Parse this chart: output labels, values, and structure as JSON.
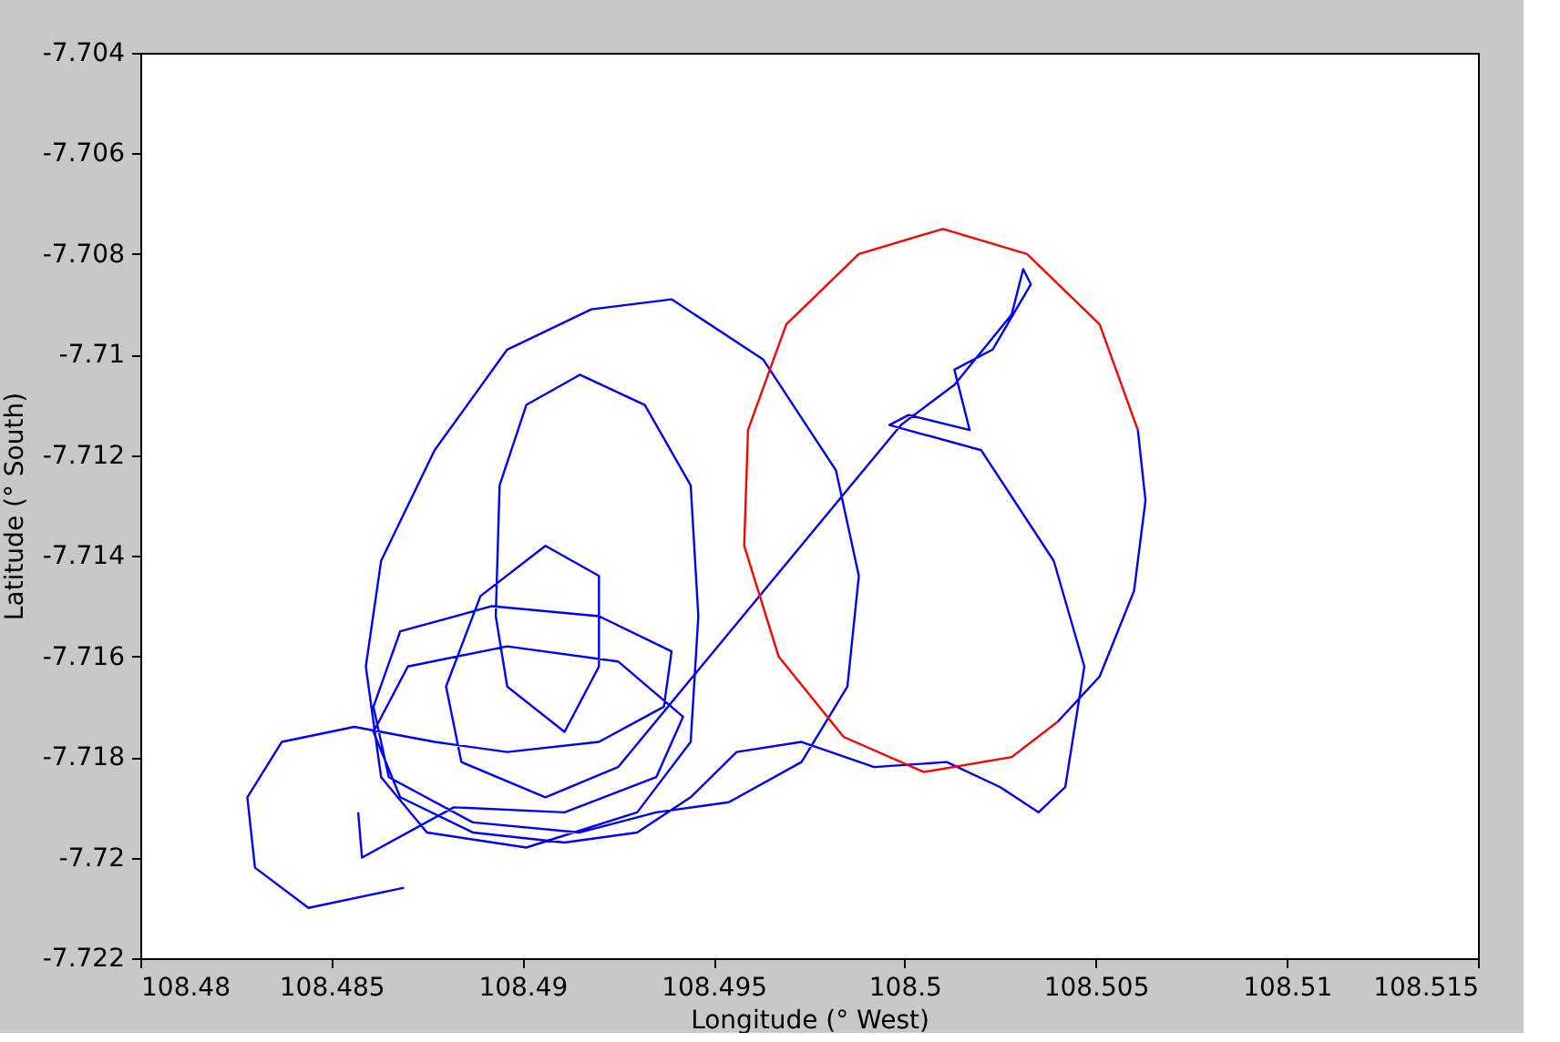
{
  "chart_data": {
    "type": "line",
    "xlabel": "Longitude (° West)",
    "ylabel": "Latitude (° South)",
    "xlim": [
      108.48,
      108.515
    ],
    "xticks": [
      108.48,
      108.485,
      108.49,
      108.495,
      108.5,
      108.505,
      108.51,
      108.515
    ],
    "ylim": [
      -7.722,
      -7.704
    ],
    "yticks": [
      -7.722,
      -7.72,
      -7.718,
      -7.716,
      -7.714,
      -7.712,
      -7.71,
      -7.708,
      -7.706,
      -7.704
    ],
    "grid": false,
    "marker": "none",
    "line_style": "solid",
    "series": [
      {
        "color": "#0000ff",
        "x": [
          108.4869,
          108.4844,
          108.483,
          108.4828,
          108.4837,
          108.4856,
          108.4877,
          108.4896,
          108.492,
          108.4937,
          108.4939,
          108.492,
          108.4892,
          108.4868,
          108.4861,
          108.4865,
          108.4887,
          108.4915,
          108.4935,
          108.4954,
          108.4973,
          108.4985,
          108.4988,
          108.4982,
          108.4963,
          108.4939,
          108.4918,
          108.4896,
          108.4877,
          108.4863,
          108.4859,
          108.4863,
          108.4875,
          108.4901,
          108.493,
          108.4944,
          108.4946,
          108.4944,
          108.4932,
          108.4915,
          108.4901,
          108.4894,
          108.4893,
          108.4896,
          108.4911,
          108.492,
          108.492,
          108.4906,
          108.4889,
          108.488,
          108.4884,
          108.4906,
          108.4925,
          108.4999,
          108.5013,
          108.5028,
          108.5031,
          108.5033,
          108.5023,
          108.5013,
          108.5017,
          108.5001,
          108.4996,
          108.502,
          108.5039,
          108.5047,
          108.5042,
          108.5035,
          108.5025,
          108.5011,
          108.4992,
          108.4973,
          108.4956,
          108.4944,
          108.493,
          108.4911,
          108.4887,
          108.4868,
          108.4861,
          108.487,
          108.4896,
          108.4925,
          108.4942,
          108.4935,
          108.4911,
          108.4882,
          108.4858,
          108.4857
        ],
        "values": [
          -7.7206,
          -7.721,
          -7.7202,
          -7.7188,
          -7.7177,
          -7.7174,
          -7.7177,
          -7.7179,
          -7.7177,
          -7.717,
          -7.7159,
          -7.7152,
          -7.715,
          -7.7155,
          -7.717,
          -7.7184,
          -7.7193,
          -7.7195,
          -7.7191,
          -7.7189,
          -7.7181,
          -7.7166,
          -7.7144,
          -7.7123,
          -7.7101,
          -7.7089,
          -7.7091,
          -7.7099,
          -7.7119,
          -7.7141,
          -7.7162,
          -7.7184,
          -7.7195,
          -7.7198,
          -7.7191,
          -7.7177,
          -7.7152,
          -7.7126,
          -7.711,
          -7.7104,
          -7.711,
          -7.7126,
          -7.7152,
          -7.7166,
          -7.7175,
          -7.7162,
          -7.7144,
          -7.7138,
          -7.7148,
          -7.7166,
          -7.7181,
          -7.7188,
          -7.7182,
          -7.7114,
          -7.7106,
          -7.7092,
          -7.7083,
          -7.7086,
          -7.7099,
          -7.7103,
          -7.7115,
          -7.7112,
          -7.7114,
          -7.7119,
          -7.7141,
          -7.7162,
          -7.7186,
          -7.7191,
          -7.7186,
          -7.7181,
          -7.7182,
          -7.7177,
          -7.7179,
          -7.7188,
          -7.7195,
          -7.7197,
          -7.7195,
          -7.7188,
          -7.7175,
          -7.7162,
          -7.7158,
          -7.7161,
          -7.7172,
          -7.7184,
          -7.7191,
          -7.719,
          -7.72,
          -7.7191
        ]
      },
      {
        "color": "#ff0000",
        "x": [
          108.5061,
          108.5051,
          108.5032,
          108.501,
          108.4988,
          108.4969,
          108.4959,
          108.4958,
          108.4967,
          108.4984,
          108.5005,
          108.5028,
          108.504
        ],
        "values": [
          -7.7115,
          -7.7094,
          -7.708,
          -7.7075,
          -7.708,
          -7.7094,
          -7.7115,
          -7.7138,
          -7.716,
          -7.7176,
          -7.7183,
          -7.718,
          -7.7173
        ]
      },
      {
        "color": "#0000ff",
        "x": [
          108.504,
          108.5051,
          108.506,
          108.5063,
          108.5061
        ],
        "values": [
          -7.7173,
          -7.7164,
          -7.7147,
          -7.7129,
          -7.7115
        ]
      }
    ]
  }
}
